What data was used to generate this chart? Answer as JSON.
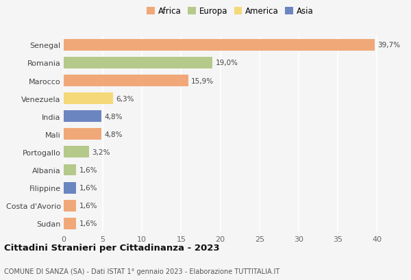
{
  "countries": [
    "Senegal",
    "Romania",
    "Marocco",
    "Venezuela",
    "India",
    "Mali",
    "Portogallo",
    "Albania",
    "Filippine",
    "Costa d'Avorio",
    "Sudan"
  ],
  "values": [
    39.7,
    19.0,
    15.9,
    6.3,
    4.8,
    4.8,
    3.2,
    1.6,
    1.6,
    1.6,
    1.6
  ],
  "labels": [
    "39,7%",
    "19,0%",
    "15,9%",
    "6,3%",
    "4,8%",
    "4,8%",
    "3,2%",
    "1,6%",
    "1,6%",
    "1,6%",
    "1,6%"
  ],
  "colors": [
    "#f0a878",
    "#b5c98a",
    "#f0a878",
    "#f5d878",
    "#6b85c0",
    "#f0a878",
    "#b5c98a",
    "#b5c98a",
    "#6b85c0",
    "#f0a878",
    "#f0a878"
  ],
  "legend_labels": [
    "Africa",
    "Europa",
    "America",
    "Asia"
  ],
  "legend_colors": [
    "#f0a878",
    "#b5c98a",
    "#f5d878",
    "#6b85c0"
  ],
  "title": "Cittadini Stranieri per Cittadinanza - 2023",
  "subtitle": "COMUNE DI SANZA (SA) - Dati ISTAT 1° gennaio 2023 - Elaborazione TUTTITALIA.IT",
  "xlim": [
    0,
    42
  ],
  "xticks": [
    0,
    5,
    10,
    15,
    20,
    25,
    30,
    35,
    40
  ],
  "bg_color": "#f5f5f5",
  "grid_color": "#ffffff",
  "bar_height": 0.65
}
